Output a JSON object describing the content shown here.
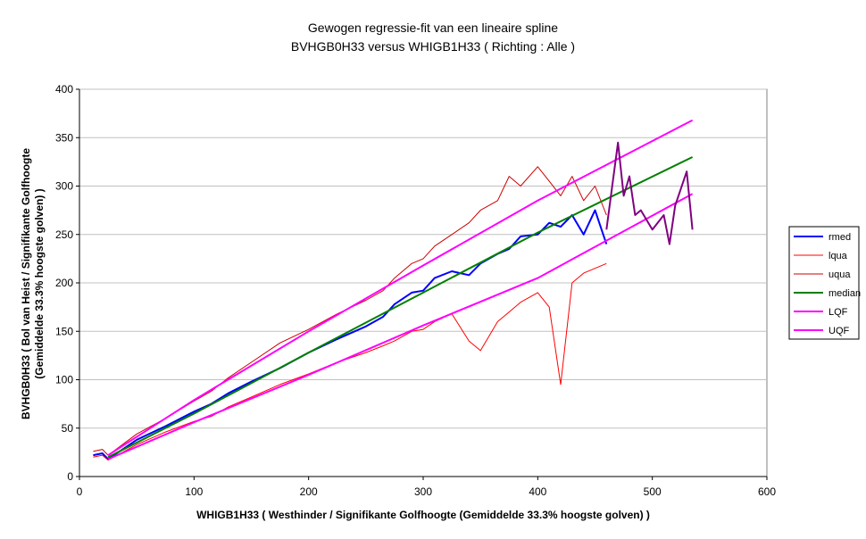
{
  "chart_data": {
    "type": "line",
    "title": "Gewogen regressie-fit van een lineaire spline",
    "subtitle": "BVHGB0H33 versus WHIGB1H33 ( Richting : Alle )",
    "xlabel": "WHIGB1H33 ( Westhinder / Signifikante Golfhoogte (Gemiddelde 33.3% hoogste golven) )",
    "ylabel_lines": [
      "BVHGB0H33 ( Bol van Heist / Signifikante Golfhoogte",
      "(Gemiddelde 33.3% hoogste golven) )"
    ],
    "xlim": [
      0,
      600
    ],
    "ylim": [
      0,
      400
    ],
    "xticks": [
      0,
      100,
      200,
      300,
      400,
      500,
      600
    ],
    "yticks": [
      0,
      50,
      100,
      150,
      200,
      250,
      300,
      350,
      400
    ],
    "grid": true,
    "legend_position": "right",
    "series": [
      {
        "name": "rmed",
        "color": "#0000ff",
        "x": [
          12,
          20,
          25,
          50,
          75,
          100,
          115,
          130,
          150,
          175,
          200,
          225,
          250,
          265,
          275,
          290,
          300,
          310,
          325,
          340,
          350,
          365,
          375,
          385,
          400,
          410,
          420,
          430,
          440,
          450,
          460
        ],
        "y": [
          22,
          24,
          18,
          38,
          52,
          67,
          75,
          86,
          98,
          112,
          128,
          142,
          155,
          165,
          178,
          190,
          192,
          205,
          212,
          208,
          220,
          230,
          235,
          248,
          250,
          262,
          258,
          270,
          250,
          275,
          240
        ]
      },
      {
        "name": "lqua",
        "color": "#ff0000",
        "x": [
          12,
          20,
          25,
          50,
          75,
          100,
          115,
          130,
          150,
          175,
          200,
          225,
          250,
          265,
          275,
          290,
          300,
          310,
          325,
          340,
          350,
          365,
          375,
          385,
          400,
          410,
          420,
          430,
          440,
          450,
          460
        ],
        "y": [
          20,
          22,
          17,
          33,
          46,
          57,
          62,
          72,
          82,
          95,
          106,
          118,
          128,
          135,
          140,
          150,
          152,
          160,
          168,
          140,
          130,
          160,
          170,
          180,
          190,
          175,
          95,
          200,
          210,
          215,
          220
        ]
      },
      {
        "name": "uqua",
        "color": "#cc0000",
        "x": [
          12,
          20,
          25,
          50,
          75,
          100,
          115,
          130,
          150,
          175,
          200,
          225,
          250,
          265,
          275,
          290,
          300,
          310,
          325,
          340,
          350,
          365,
          375,
          385,
          400,
          410,
          420,
          430,
          440,
          450,
          460
        ],
        "y": [
          26,
          28,
          22,
          44,
          60,
          78,
          88,
          102,
          118,
          138,
          152,
          168,
          182,
          192,
          205,
          220,
          225,
          238,
          250,
          262,
          275,
          285,
          310,
          300,
          320,
          305,
          290,
          310,
          285,
          300,
          270
        ]
      },
      {
        "name": "median",
        "color": "#008000",
        "x": [
          25,
          100,
          200,
          300,
          400,
          535
        ],
        "y": [
          20,
          65,
          128,
          190,
          252,
          330
        ]
      },
      {
        "name": "LQF",
        "color": "#ff00ff",
        "x": [
          25,
          100,
          200,
          300,
          400,
          535
        ],
        "y": [
          18,
          56,
          105,
          156,
          205,
          292
        ]
      },
      {
        "name": "UQF",
        "color": "#ff00ff",
        "x": [
          25,
          100,
          200,
          300,
          400,
          535
        ],
        "y": [
          22,
          79,
          150,
          218,
          285,
          368
        ]
      },
      {
        "name": "",
        "color": "#800080",
        "x": [
          460,
          470,
          475,
          480,
          485,
          490,
          500,
          510,
          515,
          520,
          530,
          535
        ],
        "y": [
          255,
          345,
          290,
          310,
          270,
          275,
          255,
          270,
          240,
          280,
          315,
          255
        ]
      }
    ]
  }
}
